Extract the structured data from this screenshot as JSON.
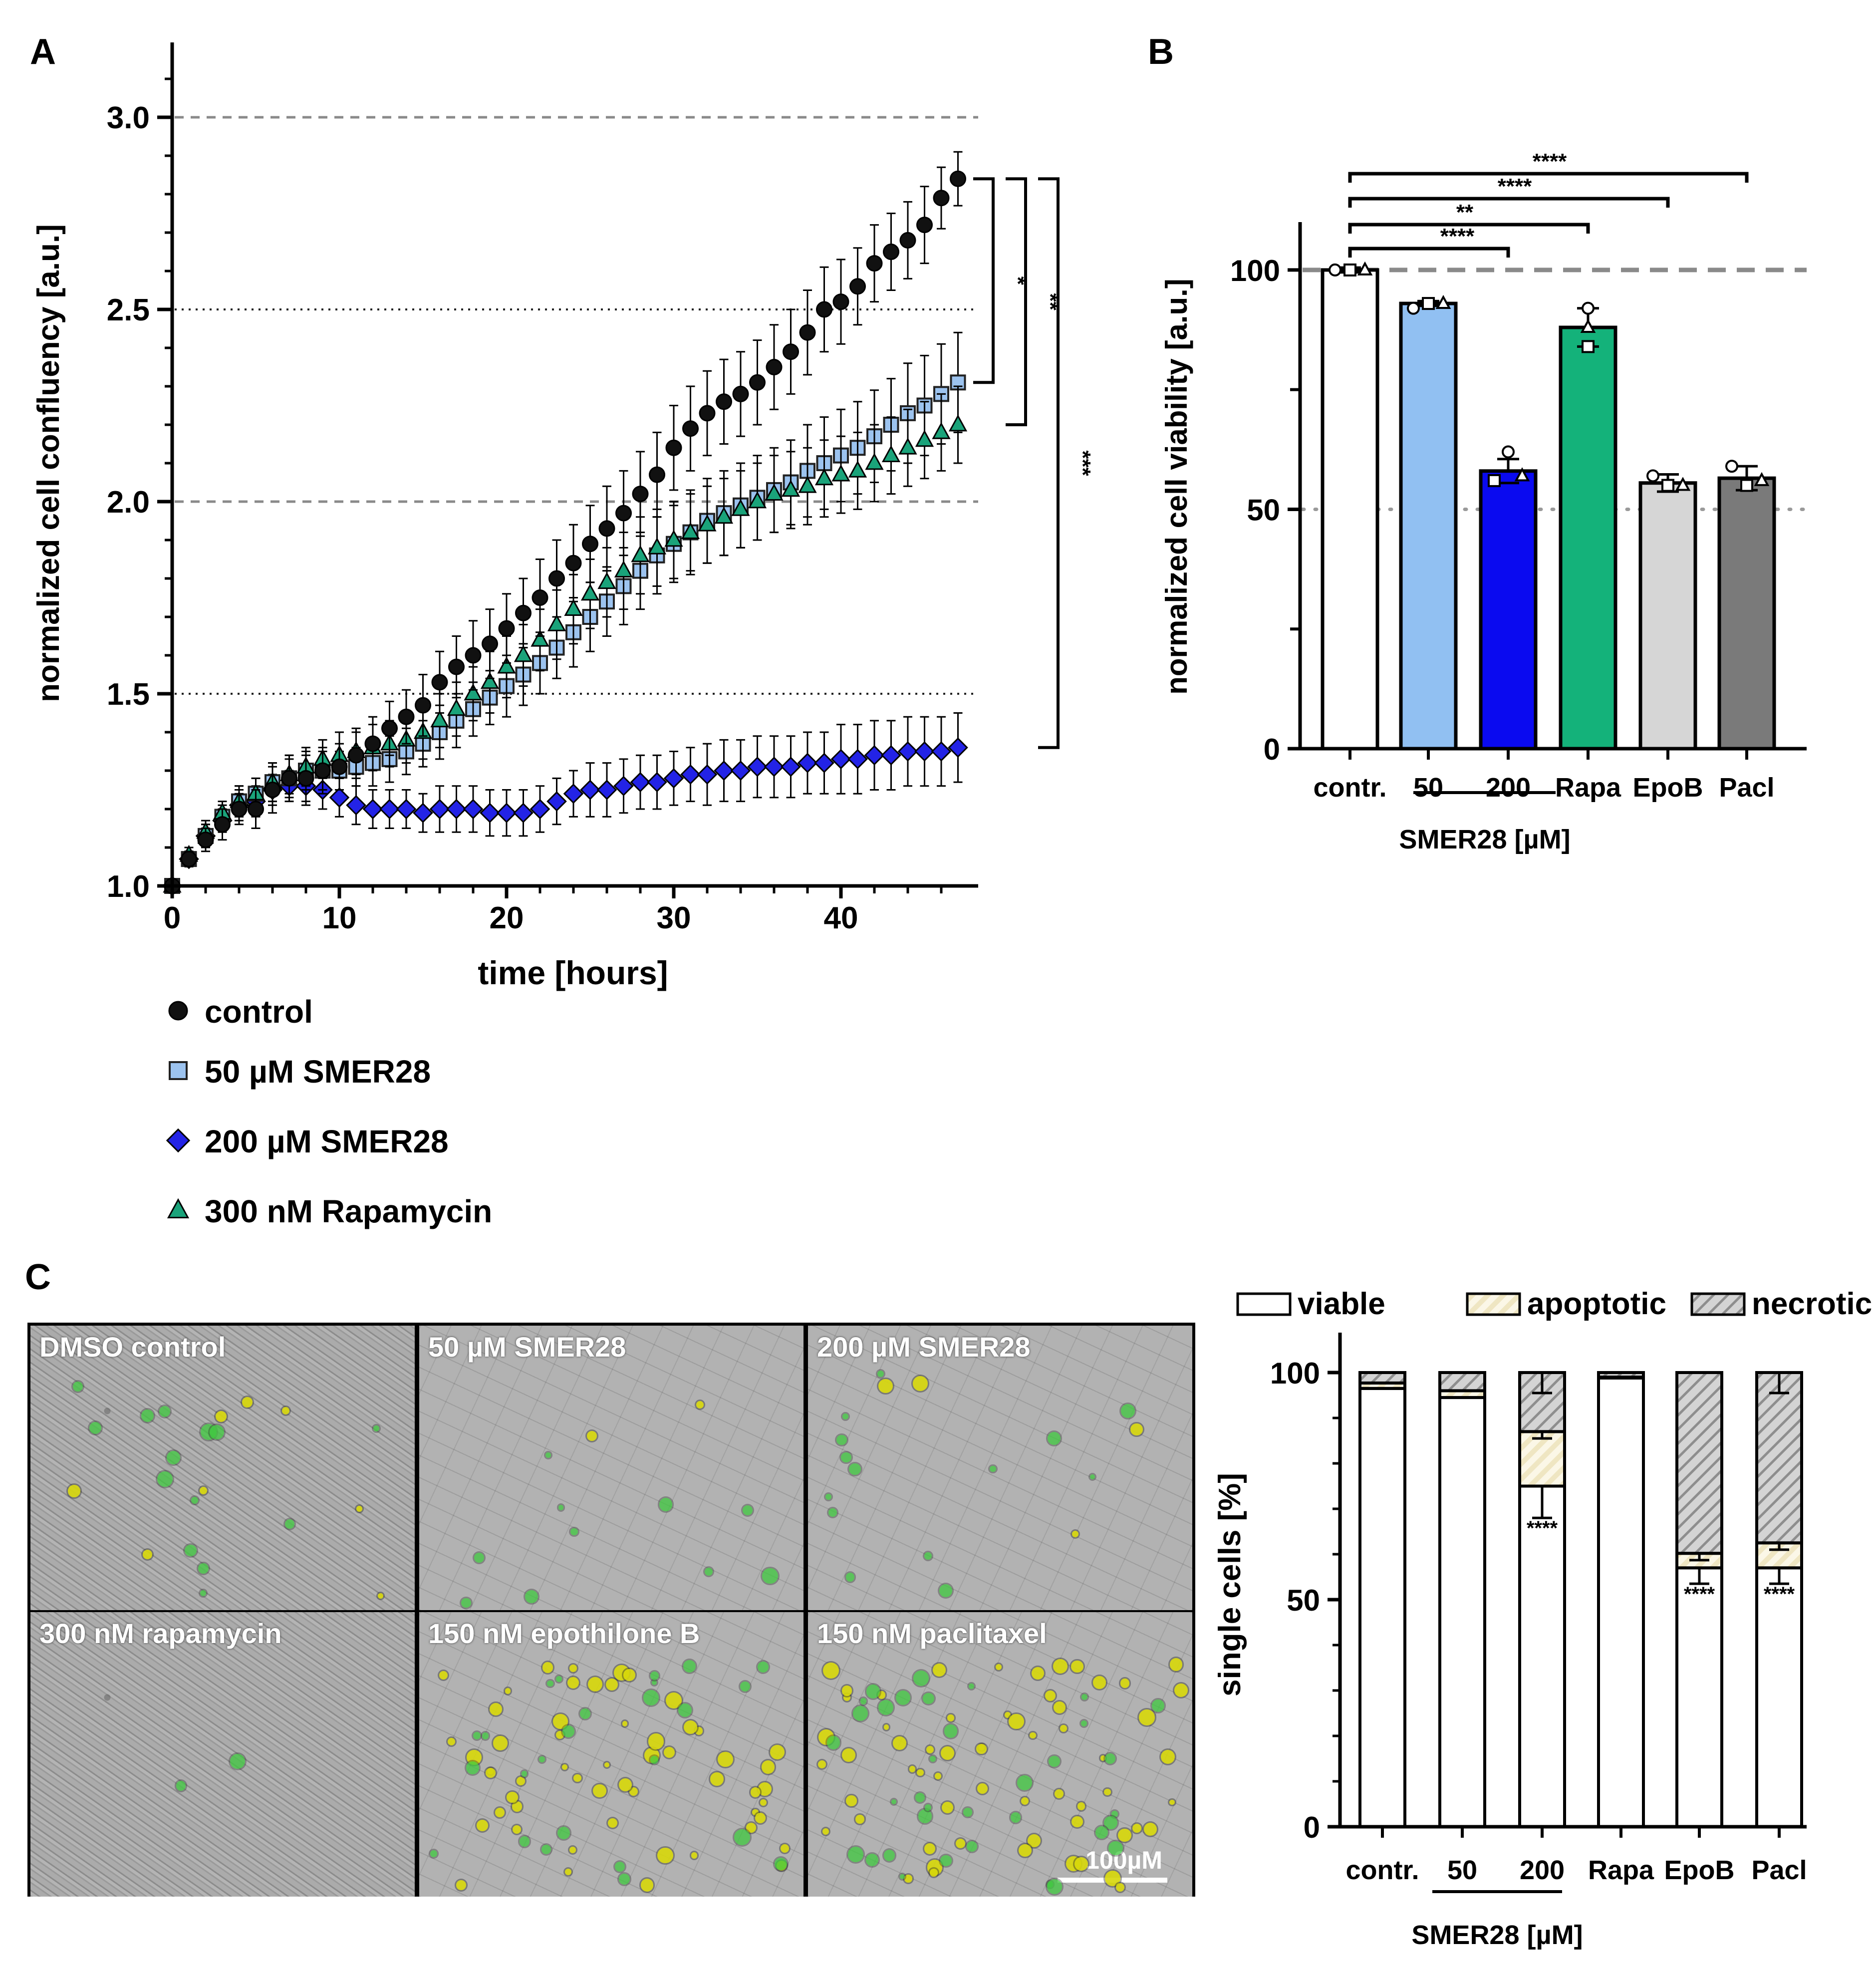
{
  "panel_labels": {
    "a": "A",
    "b": "B",
    "c": "C"
  },
  "chart_data": [
    {
      "type": "scatter",
      "panel": "A",
      "xlabel": "time [hours]",
      "ylabel": "normalized cell confluency [a.u.]",
      "xlim": [
        0,
        48
      ],
      "ylim": [
        1.0,
        3.2
      ],
      "xticks": [
        "0",
        "10",
        "20",
        "30",
        "40"
      ],
      "yticks": [
        "1.0",
        "1.5",
        "2.0",
        "2.5",
        "3.0"
      ],
      "x": [
        0,
        1,
        2,
        3,
        4,
        5,
        6,
        7,
        8,
        9,
        10,
        11,
        12,
        13,
        14,
        15,
        16,
        17,
        18,
        19,
        20,
        21,
        22,
        23,
        24,
        25,
        26,
        27,
        28,
        29,
        30,
        31,
        32,
        33,
        34,
        35,
        36,
        37,
        38,
        39,
        40,
        41,
        42,
        43,
        44,
        45,
        46,
        47
      ],
      "series": [
        {
          "name": "control",
          "color": "#111111",
          "marker": "circle",
          "values": [
            1.0,
            1.07,
            1.12,
            1.16,
            1.2,
            1.2,
            1.25,
            1.28,
            1.28,
            1.3,
            1.31,
            1.34,
            1.37,
            1.41,
            1.44,
            1.47,
            1.53,
            1.57,
            1.6,
            1.63,
            1.67,
            1.71,
            1.75,
            1.8,
            1.84,
            1.89,
            1.93,
            1.97,
            2.02,
            2.07,
            2.14,
            2.19,
            2.23,
            2.26,
            2.28,
            2.31,
            2.35,
            2.39,
            2.44,
            2.5,
            2.52,
            2.56,
            2.62,
            2.65,
            2.68,
            2.72,
            2.79,
            2.84
          ],
          "errors": [
            0,
            0.02,
            0.03,
            0.04,
            0.04,
            0.05,
            0.06,
            0.06,
            0.06,
            0.06,
            0.06,
            0.06,
            0.07,
            0.07,
            0.07,
            0.08,
            0.08,
            0.08,
            0.09,
            0.09,
            0.09,
            0.09,
            0.1,
            0.1,
            0.1,
            0.1,
            0.11,
            0.11,
            0.11,
            0.11,
            0.11,
            0.11,
            0.11,
            0.11,
            0.11,
            0.11,
            0.11,
            0.11,
            0.11,
            0.11,
            0.11,
            0.1,
            0.1,
            0.1,
            0.1,
            0.1,
            0.08,
            0.07
          ]
        },
        {
          "name": "50 µM SMER28",
          "color": "#9cc3ef",
          "marker": "square",
          "values": [
            1.0,
            1.07,
            1.13,
            1.18,
            1.22,
            1.24,
            1.27,
            1.28,
            1.3,
            1.3,
            1.3,
            1.31,
            1.32,
            1.33,
            1.35,
            1.37,
            1.4,
            1.43,
            1.46,
            1.49,
            1.52,
            1.55,
            1.58,
            1.62,
            1.66,
            1.7,
            1.74,
            1.78,
            1.82,
            1.86,
            1.89,
            1.92,
            1.95,
            1.97,
            1.99,
            2.01,
            2.03,
            2.05,
            2.08,
            2.1,
            2.12,
            2.14,
            2.17,
            2.2,
            2.23,
            2.25,
            2.28,
            2.31
          ],
          "errors": [
            0,
            0.02,
            0.03,
            0.03,
            0.04,
            0.04,
            0.05,
            0.05,
            0.05,
            0.05,
            0.05,
            0.05,
            0.06,
            0.06,
            0.06,
            0.06,
            0.07,
            0.07,
            0.07,
            0.07,
            0.08,
            0.08,
            0.08,
            0.08,
            0.09,
            0.09,
            0.09,
            0.1,
            0.1,
            0.1,
            0.1,
            0.11,
            0.11,
            0.11,
            0.11,
            0.11,
            0.11,
            0.11,
            0.12,
            0.12,
            0.12,
            0.12,
            0.12,
            0.12,
            0.13,
            0.13,
            0.13,
            0.13
          ]
        },
        {
          "name": "200 µM SMER28",
          "color": "#2323e6",
          "marker": "diamond",
          "values": [
            1.0,
            1.07,
            1.13,
            1.17,
            1.21,
            1.22,
            1.25,
            1.26,
            1.26,
            1.25,
            1.23,
            1.21,
            1.2,
            1.2,
            1.2,
            1.19,
            1.2,
            1.2,
            1.2,
            1.19,
            1.19,
            1.19,
            1.2,
            1.22,
            1.24,
            1.25,
            1.25,
            1.26,
            1.27,
            1.27,
            1.28,
            1.29,
            1.29,
            1.3,
            1.3,
            1.31,
            1.31,
            1.31,
            1.32,
            1.32,
            1.33,
            1.33,
            1.34,
            1.34,
            1.35,
            1.35,
            1.35,
            1.36
          ],
          "errors": [
            0,
            0.02,
            0.03,
            0.03,
            0.04,
            0.04,
            0.04,
            0.04,
            0.05,
            0.05,
            0.05,
            0.05,
            0.05,
            0.05,
            0.05,
            0.05,
            0.06,
            0.06,
            0.06,
            0.06,
            0.06,
            0.06,
            0.06,
            0.06,
            0.06,
            0.07,
            0.07,
            0.07,
            0.07,
            0.07,
            0.07,
            0.07,
            0.08,
            0.08,
            0.08,
            0.08,
            0.08,
            0.08,
            0.08,
            0.08,
            0.09,
            0.09,
            0.09,
            0.09,
            0.09,
            0.09,
            0.09,
            0.09
          ]
        },
        {
          "name": "300 nM Rapamycin",
          "color": "#1aa37a",
          "marker": "triangle",
          "values": [
            1.0,
            1.08,
            1.14,
            1.19,
            1.22,
            1.24,
            1.27,
            1.29,
            1.31,
            1.33,
            1.34,
            1.35,
            1.36,
            1.37,
            1.38,
            1.4,
            1.43,
            1.46,
            1.5,
            1.53,
            1.57,
            1.6,
            1.64,
            1.68,
            1.72,
            1.76,
            1.79,
            1.82,
            1.86,
            1.88,
            1.9,
            1.92,
            1.94,
            1.96,
            1.98,
            2.0,
            2.02,
            2.03,
            2.04,
            2.06,
            2.07,
            2.08,
            2.1,
            2.12,
            2.14,
            2.16,
            2.18,
            2.2
          ],
          "errors": [
            0,
            0.02,
            0.03,
            0.03,
            0.04,
            0.04,
            0.05,
            0.05,
            0.05,
            0.05,
            0.06,
            0.06,
            0.06,
            0.06,
            0.06,
            0.07,
            0.07,
            0.07,
            0.07,
            0.08,
            0.08,
            0.08,
            0.08,
            0.09,
            0.09,
            0.09,
            0.09,
            0.1,
            0.1,
            0.1,
            0.1,
            0.1,
            0.1,
            0.1,
            0.1,
            0.1,
            0.1,
            0.1,
            0.1,
            0.1,
            0.1,
            0.1,
            0.1,
            0.1,
            0.1,
            0.1,
            0.1,
            0.1
          ]
        }
      ],
      "reference_lines": [
        1.5,
        2.0,
        2.5,
        3.0
      ],
      "significance": [
        {
          "label": "*",
          "from": "control",
          "to": "50 µM SMER28"
        },
        {
          "label": "**",
          "from": "control",
          "to": "300 nM Rapamycin"
        },
        {
          "label": "***",
          "from": "control",
          "to": "200 µM SMER28"
        }
      ],
      "legend": [
        "control",
        "50 µM SMER28",
        "200 µM SMER28",
        "300 nM Rapamycin"
      ]
    },
    {
      "type": "bar",
      "panel": "B",
      "ylabel": "normalized cell viability [a.u.]",
      "ylim": [
        0,
        110
      ],
      "yticks": [
        "0",
        "50",
        "100"
      ],
      "categories": [
        "contr.",
        "50",
        "200",
        "Rapa",
        "EpoB",
        "Pacl"
      ],
      "group_label": "SMER28 [µM]",
      "values": [
        100,
        93,
        58,
        88,
        55.5,
        56.5
      ],
      "errors": [
        0.5,
        0.5,
        2.5,
        4,
        1.8,
        2.5
      ],
      "colors": [
        "#ffffff",
        "#91c0f2",
        "#0a0af0",
        "#14b27a",
        "#d6d6d6",
        "#7a7a7a"
      ],
      "points": [
        [
          100,
          100,
          100
        ],
        [
          92,
          93,
          93
        ],
        [
          62,
          56,
          57
        ],
        [
          92,
          84,
          88
        ],
        [
          57,
          55,
          55
        ],
        [
          59,
          55,
          56
        ]
      ],
      "reference_lines": [
        100,
        50
      ],
      "significance": [
        {
          "label": "****",
          "from": "contr.",
          "to": "200"
        },
        {
          "label": "**",
          "from": "contr.",
          "to": "Rapa"
        },
        {
          "label": "****",
          "from": "contr.",
          "to": "EpoB"
        },
        {
          "label": "****",
          "from": "contr.",
          "to": "Pacl"
        }
      ]
    },
    {
      "type": "bar",
      "stacked": true,
      "panel": "C",
      "ylabel": "single cells [%]",
      "ylim": [
        0,
        100
      ],
      "yticks": [
        "0",
        "50",
        "100"
      ],
      "categories": [
        "contr.",
        "50",
        "200",
        "Rapa",
        "EpoB",
        "Pacl"
      ],
      "group_label": "SMER28 [µM]",
      "series": [
        {
          "name": "viable",
          "values": [
            96.5,
            94.5,
            75,
            98.8,
            57,
            57
          ]
        },
        {
          "name": "apoptotic",
          "values": [
            1.2,
            1.5,
            12,
            0.2,
            3.2,
            5.5
          ]
        },
        {
          "name": "necrotic",
          "values": [
            2.3,
            4,
            13,
            1,
            39.8,
            37.5
          ]
        }
      ],
      "significance": [
        {
          "label": "****",
          "category": "200"
        },
        {
          "label": "****",
          "category": "EpoB"
        },
        {
          "label": "****",
          "category": "Pacl"
        }
      ]
    }
  ],
  "micrographs": {
    "labels": [
      "DMSO control",
      "50 µM SMER28",
      "200 µM SMER28",
      "300 nM rapamycin",
      "150 nM epothilone B",
      "150 nM paclitaxel"
    ],
    "scale_bar": "100µM",
    "colors": {
      "apoptotic_stain": "#d8d80a",
      "necrotic_stain": "#3ec83e"
    }
  }
}
